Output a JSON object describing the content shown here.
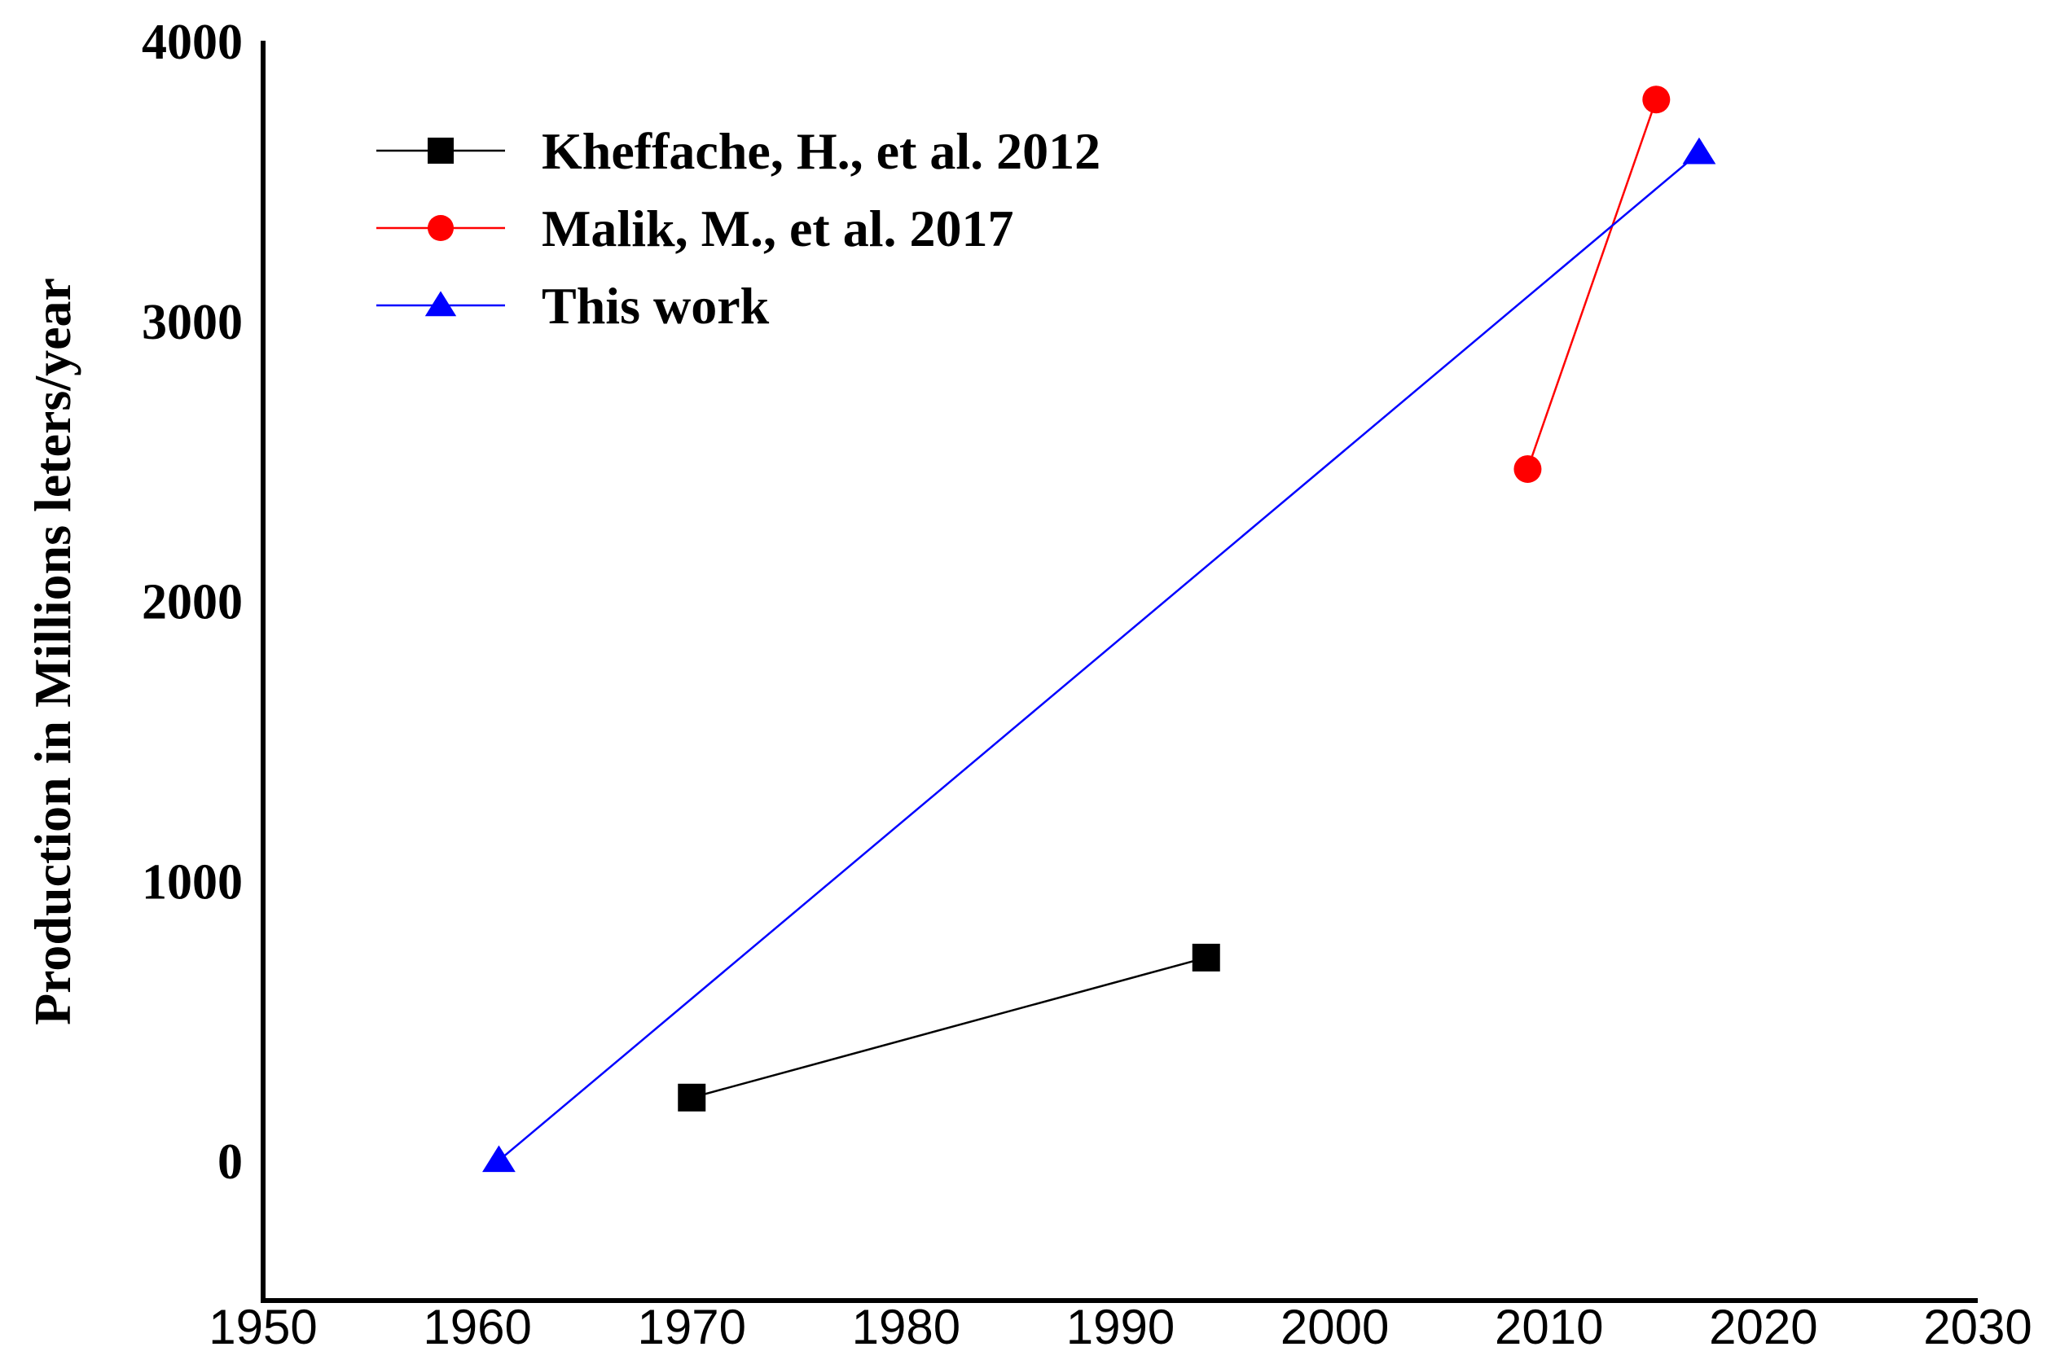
{
  "chart_data": {
    "type": "line",
    "title": "",
    "xlabel": "",
    "ylabel": "Production in Millions leters/year",
    "xlim": [
      1950,
      2030
    ],
    "ylim": [
      -500,
      4000
    ],
    "x_ticks": [
      1950,
      1960,
      1970,
      1980,
      1990,
      2000,
      2010,
      2020,
      2030
    ],
    "y_ticks": [
      0,
      1000,
      2000,
      3000,
      4000
    ],
    "grid": false,
    "legend_position": "top-left",
    "series": [
      {
        "name": "Kheffache, H., et al. 2012",
        "color": "#000000",
        "marker": "square",
        "points": [
          {
            "x": 1970,
            "y": 225
          },
          {
            "x": 1994,
            "y": 725
          }
        ]
      },
      {
        "name": "Malik, M., et al. 2017",
        "color": "#ff0000",
        "marker": "circle",
        "points": [
          {
            "x": 2009,
            "y": 2470
          },
          {
            "x": 2015,
            "y": 3790
          }
        ]
      },
      {
        "name": "This work",
        "color": "#0000ff",
        "marker": "triangle",
        "points": [
          {
            "x": 1961,
            "y": 0
          },
          {
            "x": 2017,
            "y": 3600
          }
        ]
      }
    ]
  }
}
